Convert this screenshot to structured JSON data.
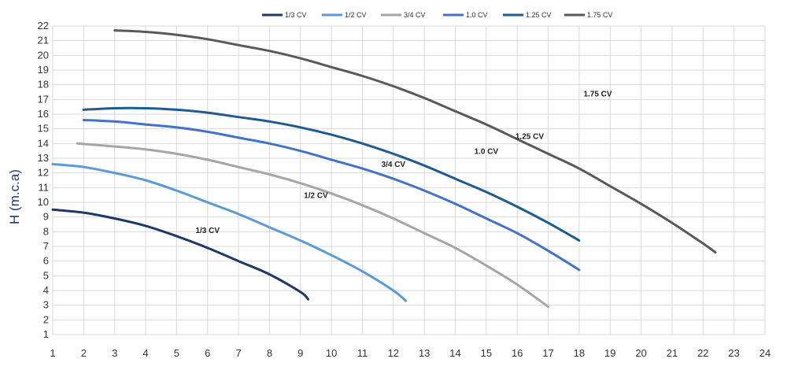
{
  "chart_data": {
    "type": "line",
    "title": "",
    "xlabel": "",
    "ylabel": "H (m.c.a)",
    "xlim": [
      1,
      24
    ],
    "ylim": [
      1,
      22
    ],
    "xticks": [
      "1",
      "2",
      "3",
      "4",
      "5",
      "6",
      "7",
      "8",
      "9",
      "10",
      "11",
      "12",
      "13",
      "14",
      "15",
      "16",
      "17",
      "18",
      "19",
      "20",
      "21",
      "22",
      "23",
      "24"
    ],
    "yticks": [
      "1",
      "2",
      "3",
      "4",
      "5",
      "6",
      "7",
      "8",
      "9",
      "10",
      "11",
      "12",
      "13",
      "14",
      "15",
      "16",
      "17",
      "18",
      "19",
      "20",
      "21",
      "22"
    ],
    "grid": true,
    "legend_position": "top",
    "series": [
      {
        "name": "1/3 CV",
        "label": "1/3 CV",
        "color": "#1f3864",
        "label_at": [
          6,
          7.9
        ],
        "points": [
          [
            1,
            9.5
          ],
          [
            2,
            9.3
          ],
          [
            3,
            8.9
          ],
          [
            4,
            8.4
          ],
          [
            5,
            7.7
          ],
          [
            6,
            6.9
          ],
          [
            7,
            6.0
          ],
          [
            8,
            5.1
          ],
          [
            9,
            3.9
          ],
          [
            9.25,
            3.4
          ]
        ]
      },
      {
        "name": "1/2 CV",
        "label": "1/2 CV",
        "color": "#5b9bd5",
        "label_at": [
          9.5,
          10.3
        ],
        "points": [
          [
            1,
            12.6
          ],
          [
            2,
            12.4
          ],
          [
            3,
            12.0
          ],
          [
            4,
            11.5
          ],
          [
            5,
            10.8
          ],
          [
            6,
            10.0
          ],
          [
            7,
            9.2
          ],
          [
            8,
            8.3
          ],
          [
            9,
            7.4
          ],
          [
            10,
            6.4
          ],
          [
            11,
            5.3
          ],
          [
            12,
            4.0
          ],
          [
            12.4,
            3.3
          ]
        ]
      },
      {
        "name": "3/4 CV",
        "label": "3/4 CV",
        "color": "#a6a6a6",
        "label_at": [
          12,
          12.4
        ],
        "points": [
          [
            1.8,
            14.0
          ],
          [
            3,
            13.8
          ],
          [
            4,
            13.6
          ],
          [
            5,
            13.3
          ],
          [
            6,
            12.9
          ],
          [
            7,
            12.4
          ],
          [
            8,
            11.9
          ],
          [
            9,
            11.3
          ],
          [
            10,
            10.6
          ],
          [
            11,
            9.8
          ],
          [
            12,
            8.9
          ],
          [
            13,
            7.9
          ],
          [
            14,
            6.9
          ],
          [
            15,
            5.7
          ],
          [
            16,
            4.4
          ],
          [
            17,
            2.9
          ]
        ]
      },
      {
        "name": "1.0 CV",
        "label": "1.0 CV",
        "color": "#4472c4",
        "label_at": [
          15,
          13.3
        ],
        "points": [
          [
            2,
            15.6
          ],
          [
            3,
            15.5
          ],
          [
            4,
            15.3
          ],
          [
            5,
            15.1
          ],
          [
            6,
            14.8
          ],
          [
            7,
            14.4
          ],
          [
            8,
            14.0
          ],
          [
            9,
            13.5
          ],
          [
            10,
            12.9
          ],
          [
            11,
            12.3
          ],
          [
            12,
            11.6
          ],
          [
            13,
            10.8
          ],
          [
            14,
            9.9
          ],
          [
            15,
            8.9
          ],
          [
            16,
            7.9
          ],
          [
            17,
            6.7
          ],
          [
            18,
            5.4
          ]
        ]
      },
      {
        "name": "1.25 CV",
        "label": "1.25 CV",
        "color": "#1f5b8f",
        "label_at": [
          16.4,
          14.3
        ],
        "points": [
          [
            2,
            16.3
          ],
          [
            3,
            16.4
          ],
          [
            4,
            16.4
          ],
          [
            5,
            16.3
          ],
          [
            6,
            16.1
          ],
          [
            7,
            15.8
          ],
          [
            8,
            15.5
          ],
          [
            9,
            15.1
          ],
          [
            10,
            14.6
          ],
          [
            11,
            14.0
          ],
          [
            12,
            13.3
          ],
          [
            13,
            12.5
          ],
          [
            14,
            11.6
          ],
          [
            15,
            10.7
          ],
          [
            16,
            9.7
          ],
          [
            17,
            8.6
          ],
          [
            18,
            7.4
          ]
        ]
      },
      {
        "name": "1.75 CV",
        "label": "1.75 CV",
        "color": "#595959",
        "label_at": [
          18.6,
          17.2
        ],
        "points": [
          [
            3,
            21.7
          ],
          [
            4,
            21.6
          ],
          [
            5,
            21.4
          ],
          [
            6,
            21.1
          ],
          [
            7,
            20.7
          ],
          [
            8,
            20.3
          ],
          [
            9,
            19.8
          ],
          [
            10,
            19.2
          ],
          [
            11,
            18.6
          ],
          [
            12,
            17.9
          ],
          [
            13,
            17.1
          ],
          [
            14,
            16.2
          ],
          [
            15,
            15.3
          ],
          [
            16,
            14.3
          ],
          [
            17,
            13.3
          ],
          [
            18,
            12.3
          ],
          [
            19,
            11.1
          ],
          [
            20,
            9.9
          ],
          [
            21,
            8.6
          ],
          [
            22,
            7.2
          ],
          [
            22.4,
            6.6
          ]
        ]
      }
    ]
  }
}
